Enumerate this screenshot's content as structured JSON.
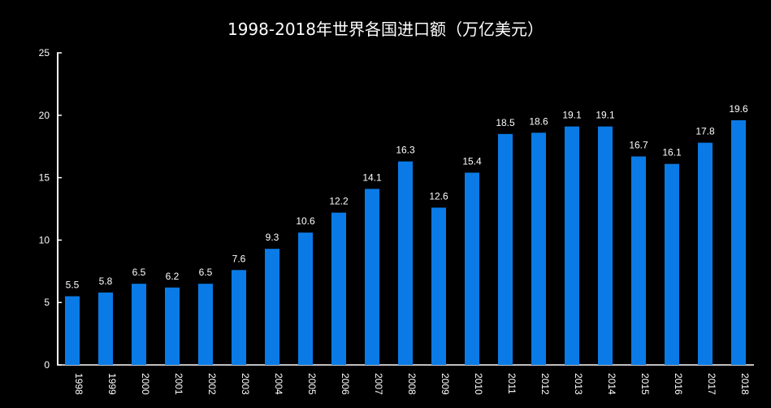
{
  "chart_data": {
    "type": "bar",
    "title": "1998-2018年世界各国进口额（万亿美元）",
    "xlabel": "",
    "ylabel": "",
    "ylim": [
      0,
      25
    ],
    "yticks": [
      0,
      5,
      10,
      15,
      20,
      25
    ],
    "categories": [
      "1998",
      "1999",
      "2000",
      "2001",
      "2002",
      "2003",
      "2004",
      "2005",
      "2006",
      "2007",
      "2008",
      "2009",
      "2010",
      "2011",
      "2012",
      "2013",
      "2014",
      "2015",
      "2016",
      "2017",
      "2018"
    ],
    "values": [
      5.5,
      5.8,
      6.5,
      6.2,
      6.5,
      7.6,
      9.3,
      10.6,
      12.2,
      14.1,
      16.3,
      12.6,
      15.4,
      18.5,
      18.6,
      19.1,
      19.1,
      16.7,
      16.1,
      17.8,
      19.6
    ],
    "data_labels": [
      "5.5",
      "5.8",
      "6.5",
      "6.2",
      "6.5",
      "7.6",
      "9.3",
      "10.6",
      "12.2",
      "14.1",
      "16.3",
      "12.6",
      "15.4",
      "18.5",
      "18.6",
      "19.1",
      "19.1",
      "16.7",
      "16.1",
      "17.8",
      "19.6"
    ],
    "bar_color": "#0a7be6",
    "axis_color": "#ffffff",
    "background": "#000000",
    "grid": false,
    "legend": "none"
  }
}
